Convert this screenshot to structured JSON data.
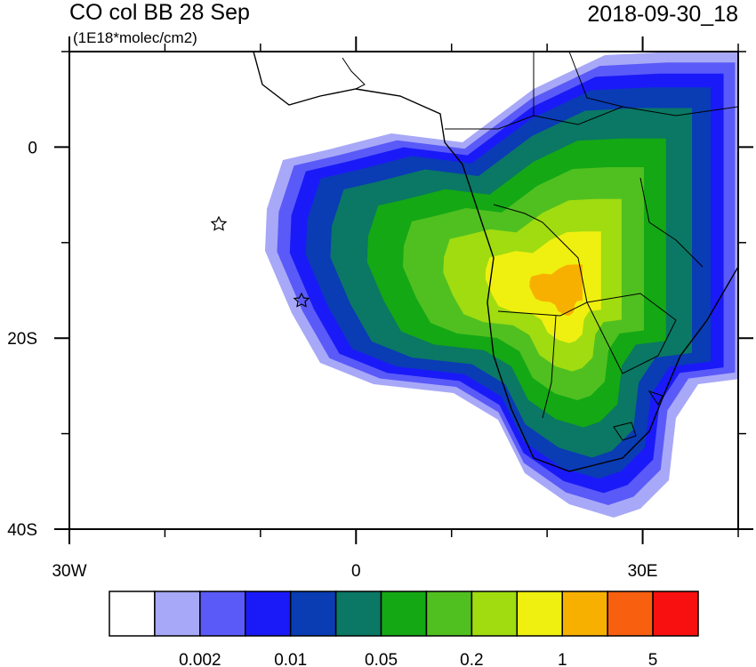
{
  "title": "CO col BB 28 Sep",
  "subtitle": "(1E18*molec/cm2)",
  "timestamp": "2018-09-30_18",
  "map": {
    "xlim": [
      -30,
      40
    ],
    "ylim": [
      -40,
      10
    ],
    "xticks": [
      {
        "value": -30,
        "label": "30W"
      },
      0,
      {
        "value": 30,
        "label": "30E"
      }
    ],
    "yticks": [
      0,
      {
        "value": -20,
        "label": "20S"
      },
      {
        "value": -40,
        "label": "40S"
      }
    ],
    "xminor_ticks": [
      -20,
      -10,
      10,
      20,
      40
    ],
    "yminor_ticks": [
      10,
      -10,
      -30
    ]
  },
  "colorbar": {
    "colors": [
      "#ffffff",
      "#a8a8f8",
      "#5a5af8",
      "#1a1af8",
      "#0a3cb4",
      "#0a7864",
      "#14a814",
      "#50c020",
      "#a0dc10",
      "#f0f010",
      "#f8b000",
      "#f86010",
      "#f81010"
    ],
    "labels": [
      "0.002",
      "0.01",
      "0.05",
      "0.2",
      "1",
      "5"
    ]
  }
}
